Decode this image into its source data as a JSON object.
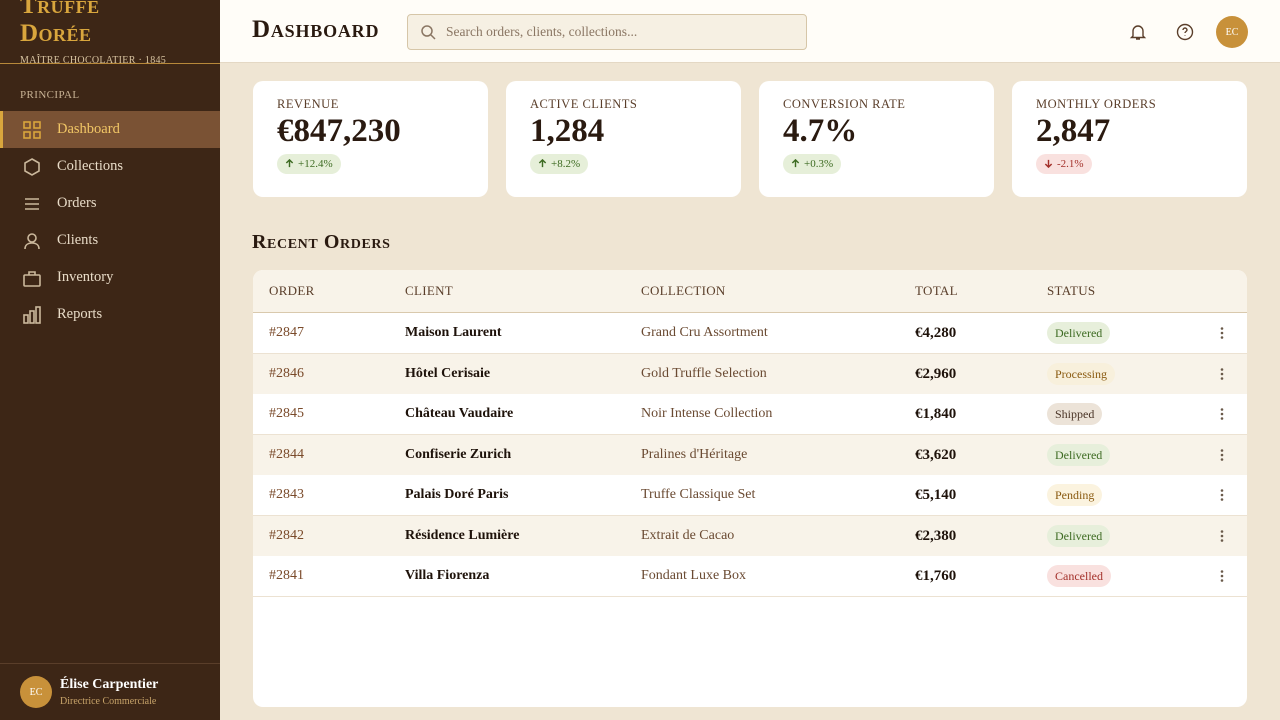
{
  "sidebar": {
    "brand": {
      "name": "Truffe Dorée",
      "tagline": "MAÎTRE CHOCOLATIER · 1845"
    },
    "section": "PRINCIPAL",
    "nav": [
      "Dashboard",
      "Collections",
      "Orders",
      "Clients",
      "Inventory",
      "Reports"
    ],
    "user": {
      "initials": "EC",
      "name": "Élise Carpentier",
      "role": "Directrice Commerciale"
    }
  },
  "header": {
    "title": "Dashboard",
    "search_placeholder": "Search orders, clients, collections...",
    "avatar": "EC"
  },
  "kpis": [
    {
      "label": "REVENUE",
      "value": "€847,230",
      "change": "+12.4%",
      "trend": "up"
    },
    {
      "label": "ACTIVE CLIENTS",
      "value": "1,284",
      "change": "+8.2%",
      "trend": "up"
    },
    {
      "label": "CONVERSION RATE",
      "value": "4.7%",
      "change": "+0.3%",
      "trend": "up"
    },
    {
      "label": "MONTHLY ORDERS",
      "value": "2,847",
      "change": "-2.1%",
      "trend": "down"
    }
  ],
  "orders": {
    "title": "Recent Orders",
    "columns": [
      "ORDER",
      "CLIENT",
      "COLLECTION",
      "TOTAL",
      "STATUS"
    ],
    "rows": [
      {
        "order": "#2847",
        "client": "Maison Laurent",
        "collection": "Grand Cru Assortment",
        "total": "€4,280",
        "status": {
          "label": "Delivered",
          "color": "#3d6b22",
          "bg": "#e7efdb"
        }
      },
      {
        "order": "#2846",
        "client": "Hôtel Cerisaie",
        "collection": "Gold Truffle Selection",
        "total": "€2,960",
        "status": {
          "label": "Processing",
          "color": "#8a5a10",
          "bg": "#f8f0dc"
        }
      },
      {
        "order": "#2845",
        "client": "Château Vaudaire",
        "collection": "Noir Intense Collection",
        "total": "€1,840",
        "status": {
          "label": "Shipped",
          "color": "#4a3426",
          "bg": "#ece3d8"
        }
      },
      {
        "order": "#2844",
        "client": "Confiserie Zurich",
        "collection": "Pralines d'Héritage",
        "total": "€3,620",
        "status": {
          "label": "Delivered",
          "color": "#3d6b22",
          "bg": "#e7efdb"
        }
      },
      {
        "order": "#2843",
        "client": "Palais Doré Paris",
        "collection": "Truffe Classique Set",
        "total": "€5,140",
        "status": {
          "label": "Pending",
          "color": "#8a5a10",
          "bg": "#fbf3df"
        }
      },
      {
        "order": "#2842",
        "client": "Résidence Lumière",
        "collection": "Extrait de Cacao",
        "total": "€2,380",
        "status": {
          "label": "Delivered",
          "color": "#3d6b22",
          "bg": "#e7efdb"
        }
      },
      {
        "order": "#2841",
        "client": "Villa Fiorenza",
        "collection": "Fondant Luxe Box",
        "total": "€1,760",
        "status": {
          "label": "Cancelled",
          "color": "#a3302a",
          "bg": "#f9e1df"
        }
      }
    ]
  }
}
